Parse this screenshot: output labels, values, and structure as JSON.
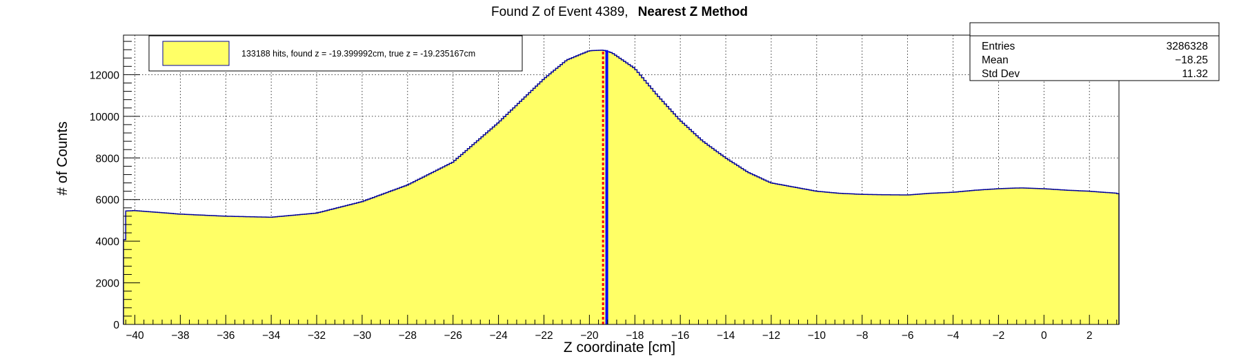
{
  "chart_data": {
    "type": "histogram",
    "title_prefix": "Found Z of Event 4389,",
    "title_bold": "Nearest Z Method",
    "xlabel": "Z coordinate [cm]",
    "ylabel": "# of Counts",
    "xlim": [
      -40.5,
      3.3
    ],
    "ylim": [
      0,
      13900
    ],
    "xticks": [
      -40,
      -38,
      -36,
      -34,
      -32,
      -30,
      -28,
      -26,
      -24,
      -22,
      -20,
      -18,
      -16,
      -14,
      -12,
      -10,
      -8,
      -6,
      -4,
      -2,
      0,
      2
    ],
    "xtick_labels": [
      "−40",
      "−38",
      "−36",
      "−34",
      "−32",
      "−30",
      "−28",
      "−26",
      "−24",
      "−22",
      "−20",
      "−18",
      "−16",
      "−14",
      "−12",
      "−10",
      "−8",
      "−6",
      "−4",
      "−2",
      "0",
      "2"
    ],
    "yticks": [
      0,
      2000,
      4000,
      6000,
      8000,
      10000,
      12000
    ],
    "ytick_labels": [
      "0",
      "2000",
      "4000",
      "6000",
      "8000",
      "10000",
      "12000"
    ],
    "grid": true,
    "fill_color": "#ffff66",
    "line_color": "#000099",
    "profile": {
      "x": [
        -40.5,
        -40.4,
        -40,
        -38,
        -36,
        -34,
        -32,
        -30,
        -28,
        -26,
        -24,
        -22,
        -21,
        -20,
        -19.4,
        -19,
        -18,
        -17,
        -16,
        -15,
        -14,
        -13,
        -12,
        -11,
        -10,
        -9,
        -8,
        -7,
        -6,
        -5,
        -4,
        -3,
        -2,
        -1,
        0,
        1,
        2,
        3.25,
        3.3
      ],
      "y": [
        2700,
        5450,
        5470,
        5300,
        5200,
        5150,
        5350,
        5900,
        6700,
        7800,
        9700,
        11800,
        12700,
        13150,
        13180,
        13050,
        12300,
        11000,
        9800,
        8800,
        8000,
        7300,
        6800,
        6600,
        6400,
        6300,
        6250,
        6230,
        6220,
        6300,
        6350,
        6450,
        6520,
        6560,
        6520,
        6450,
        6400,
        6300,
        3100
      ]
    },
    "found_z": -19.4,
    "true_z": -19.235,
    "found_line_color": "#ff0000",
    "true_line_color": "#0000ff",
    "legend": {
      "position": "top-left",
      "entry": "133188 hits, found z = -19.399992cm, true z = -19.235167cm",
      "swatch_color": "#ffff66"
    },
    "stats": {
      "position": "top-right",
      "rows": [
        {
          "label": "Entries",
          "value": "3286328"
        },
        {
          "label": "Mean",
          "value": "−18.25"
        },
        {
          "label": "Std Dev",
          "value": "11.32"
        }
      ]
    }
  }
}
